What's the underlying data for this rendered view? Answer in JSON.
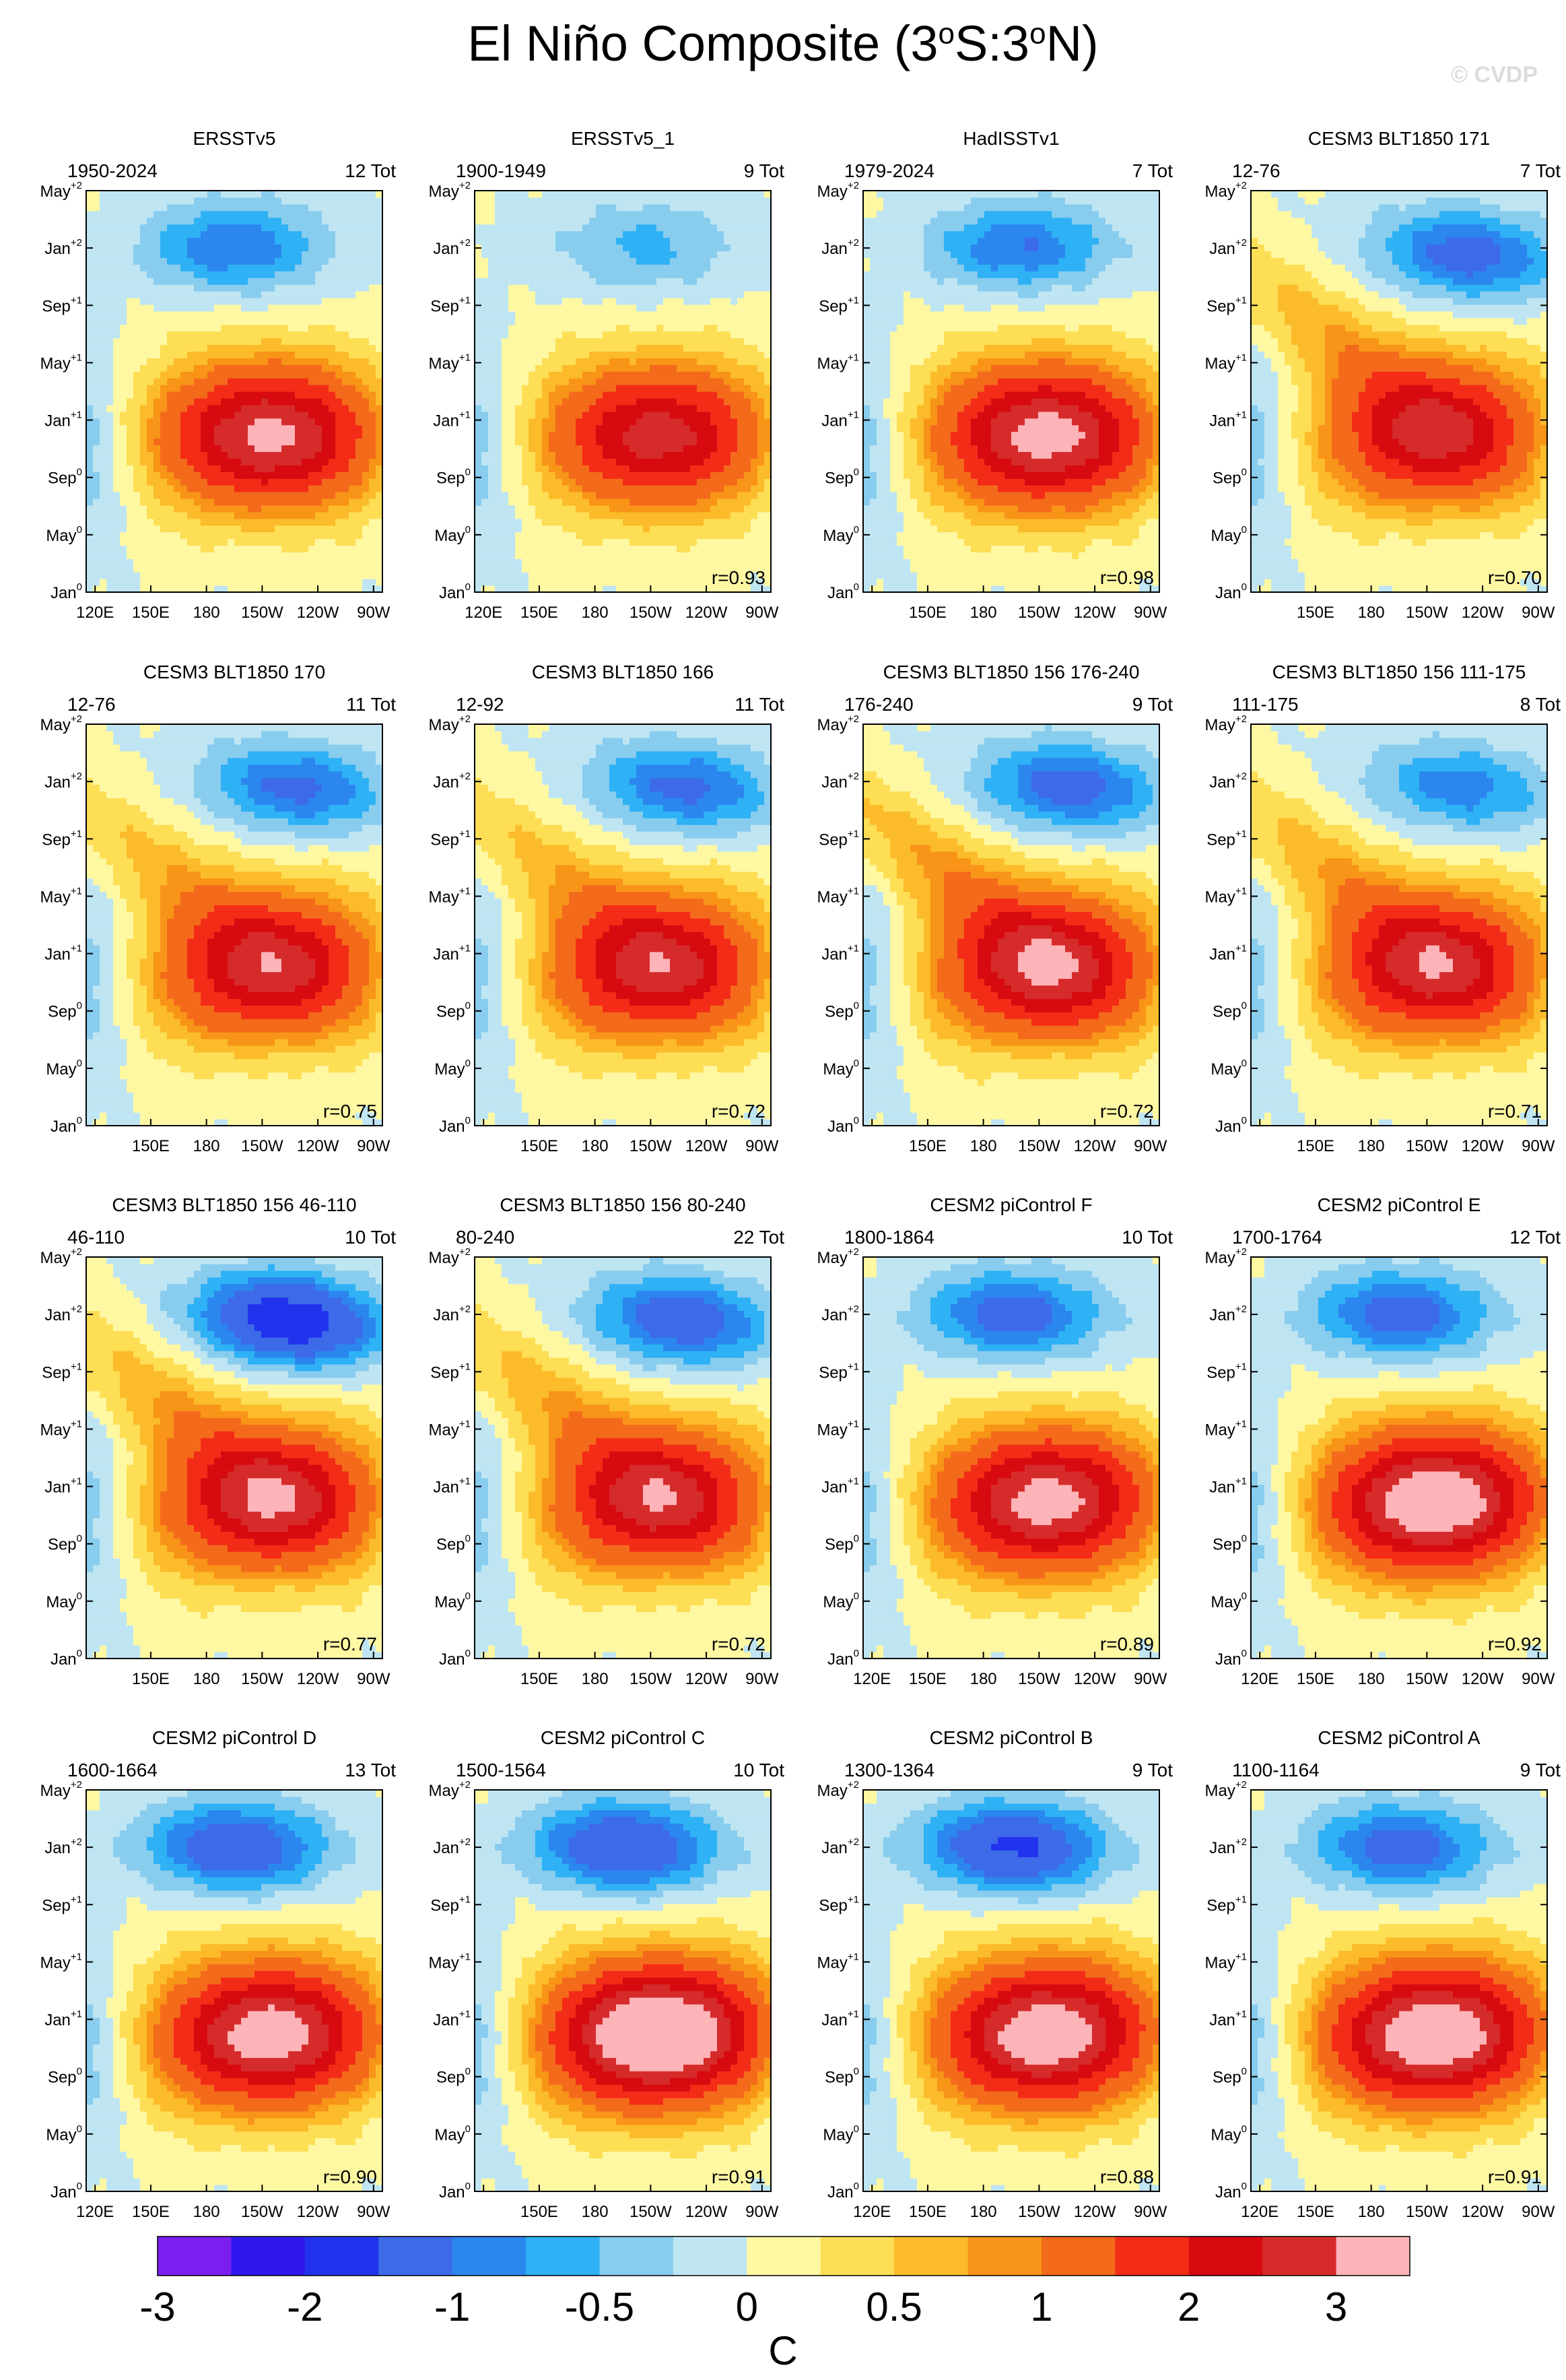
{
  "header": {
    "title_pre": "El Niño Composite (3",
    "sup1": "o",
    "title_mid": "S:3",
    "sup2": "o",
    "title_post": "N)",
    "credit": "© CVDP"
  },
  "chart_data": {
    "type": "heatmap",
    "description_axes": {
      "x_ticks_full": [
        "120E",
        "150E",
        "180",
        "150W",
        "120W",
        "90W"
      ],
      "x_ticks_short": [
        "150E",
        "180",
        "150W",
        "120W",
        "90W"
      ],
      "y_ticks": [
        {
          "month": "Jan",
          "sup": "0"
        },
        {
          "month": "May",
          "sup": "0"
        },
        {
          "month": "Sep",
          "sup": "0"
        },
        {
          "month": "Jan",
          "sup": "+1"
        },
        {
          "month": "May",
          "sup": "+1"
        },
        {
          "month": "Sep",
          "sup": "+1"
        },
        {
          "month": "Jan",
          "sup": "+2"
        },
        {
          "month": "May",
          "sup": "+2"
        }
      ]
    },
    "panels": [
      {
        "title": "ERSSTv5",
        "period": "1950-2024",
        "count": "12 Tot",
        "r": "",
        "peak": 2.3,
        "wrap": 0.1,
        "cold": -1.0,
        "coldPos": 0.33,
        "tilt": 0.0,
        "xfull": true,
        "rightTicks": false
      },
      {
        "title": "ERSSTv5_1",
        "period": "1900-1949",
        "count": "9 Tot",
        "r": "r=0.93",
        "peak": 2.0,
        "wrap": 0.1,
        "cold": -0.6,
        "coldPos": 0.5,
        "tilt": 0.0,
        "xfull": true,
        "rightTicks": false
      },
      {
        "title": "HadISSTv1",
        "period": "1979-2024",
        "count": "7 Tot",
        "r": "r=0.98",
        "peak": 2.4,
        "wrap": 0.1,
        "cold": -1.0,
        "coldPos": 0.4,
        "tilt": 0.0,
        "xfull": false,
        "rightTicks": false
      },
      {
        "title": "CESM3 BLT1850 171",
        "period": "12-76",
        "count": "7 Tot",
        "r": "r=0.70",
        "peak": 1.8,
        "wrap": 0.7,
        "cold": -1.2,
        "coldPos": 0.85,
        "tilt": 1.0,
        "xfull": false,
        "rightTicks": true
      },
      {
        "title": "CESM3 BLT1850 170",
        "period": "12-76",
        "count": "11 Tot",
        "r": "r=0.75",
        "peak": 1.9,
        "wrap": 0.6,
        "cold": -1.1,
        "coldPos": 0.8,
        "tilt": 1.0,
        "xfull": false,
        "rightTicks": false
      },
      {
        "title": "CESM3 BLT1850 166",
        "period": "12-92",
        "count": "11 Tot",
        "r": "r=0.72",
        "peak": 1.9,
        "wrap": 0.6,
        "cold": -1.1,
        "coldPos": 0.8,
        "tilt": 1.0,
        "xfull": false,
        "rightTicks": false
      },
      {
        "title": "CESM3 BLT1850 156 176-240",
        "period": "176-240",
        "count": "9 Tot",
        "r": "r=0.72",
        "peak": 2.0,
        "wrap": 0.8,
        "cold": -1.2,
        "coldPos": 0.78,
        "tilt": 1.0,
        "xfull": false,
        "rightTicks": false
      },
      {
        "title": "CESM3 BLT1850 156 111-175",
        "period": "111-175",
        "count": "8 Tot",
        "r": "r=0.71",
        "peak": 1.9,
        "wrap": 0.7,
        "cold": -0.9,
        "coldPos": 0.8,
        "tilt": 1.0,
        "xfull": false,
        "rightTicks": true
      },
      {
        "title": "CESM3 BLT1850 156 46-110",
        "period": "46-110",
        "count": "10 Tot",
        "r": "r=0.77",
        "peak": 2.0,
        "wrap": 0.7,
        "cold": -1.9,
        "coldPos": 0.75,
        "tilt": 1.0,
        "xfull": false,
        "rightTicks": false
      },
      {
        "title": "CESM3 BLT1850 156 80-240",
        "period": "80-240",
        "count": "22 Tot",
        "r": "r=0.72",
        "peak": 1.9,
        "wrap": 0.7,
        "cold": -1.3,
        "coldPos": 0.78,
        "tilt": 1.0,
        "xfull": false,
        "rightTicks": false
      },
      {
        "title": "CESM2 piControl F",
        "period": "1800-1864",
        "count": "10 Tot",
        "r": "r=0.89",
        "peak": 2.4,
        "wrap": 0.1,
        "cold": -1.2,
        "coldPos": 0.35,
        "tilt": 0.3,
        "xfull": true,
        "rightTicks": false
      },
      {
        "title": "CESM2 piControl E",
        "period": "1700-1764",
        "count": "12 Tot",
        "r": "r=0.92",
        "peak": 2.7,
        "wrap": 0.1,
        "cold": -1.2,
        "coldPos": 0.35,
        "tilt": 0.3,
        "xfull": true,
        "rightTicks": true
      },
      {
        "title": "CESM2 piControl D",
        "period": "1600-1664",
        "count": "13 Tot",
        "r": "r=0.90",
        "peak": 2.5,
        "wrap": 0.1,
        "cold": -1.4,
        "coldPos": 0.35,
        "tilt": 0.3,
        "xfull": true,
        "rightTicks": false
      },
      {
        "title": "CESM2 piControl C",
        "period": "1500-1564",
        "count": "10 Tot",
        "r": "r=0.91",
        "peak": 3.0,
        "wrap": 0.1,
        "cold": -1.5,
        "coldPos": 0.35,
        "tilt": 0.3,
        "xfull": false,
        "rightTicks": false
      },
      {
        "title": "CESM2 piControl B",
        "period": "1300-1364",
        "count": "9 Tot",
        "r": "r=0.88",
        "peak": 2.6,
        "wrap": 0.1,
        "cold": -1.6,
        "coldPos": 0.35,
        "tilt": 0.3,
        "xfull": true,
        "rightTicks": false
      },
      {
        "title": "CESM2 piControl A",
        "period": "1100-1164",
        "count": "9 Tot",
        "r": "r=0.91",
        "peak": 2.7,
        "wrap": 0.1,
        "cold": -1.2,
        "coldPos": 0.35,
        "tilt": 0.3,
        "xfull": true,
        "rightTicks": true
      }
    ],
    "colorbar": {
      "levels": [
        -3,
        -2.5,
        -2,
        -1.5,
        -1,
        -0.75,
        -0.5,
        -0.25,
        0,
        0.25,
        0.5,
        0.75,
        1,
        1.5,
        2,
        2.5,
        3
      ],
      "colors": [
        "#7b1ff0",
        "#3017ee",
        "#2233ee",
        "#3d6ae9",
        "#2b86ee",
        "#2eb1f5",
        "#88ccee",
        "#bfe5f3",
        "#fff8a3",
        "#fdde55",
        "#fcbb2a",
        "#f89418",
        "#f46a1b",
        "#f32c18",
        "#d70a0f",
        "#d62b2b",
        "#fdb4b8"
      ],
      "labels": [
        {
          "text": "-3",
          "level": -3
        },
        {
          "text": "-2",
          "level": -2
        },
        {
          "text": "-1",
          "level": -1
        },
        {
          "text": "-0.5",
          "level": -0.5
        },
        {
          "text": "0",
          "level": 0
        },
        {
          "text": "0.5",
          "level": 0.5
        },
        {
          "text": "1",
          "level": 1
        },
        {
          "text": "2",
          "level": 2
        },
        {
          "text": "3",
          "level": 3
        }
      ],
      "unit": "C"
    }
  }
}
